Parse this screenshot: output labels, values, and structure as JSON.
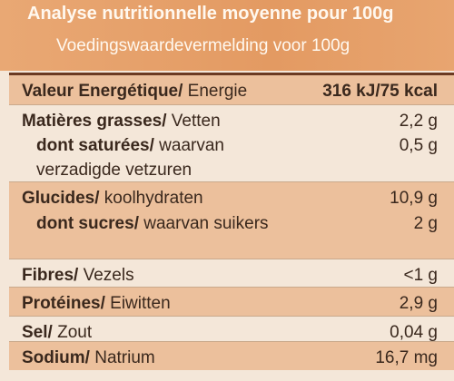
{
  "header": {
    "title": "Analyse nutritionnelle moyenne pour 100g",
    "subtitle": "Voedingswaardevermelding voor 100g"
  },
  "table": {
    "rows": [
      {
        "label_bold": "Valeur Energétique/",
        "label": " Energie",
        "value": "316 kJ/75 kcal"
      },
      {
        "label_bold": "Matières grasses/",
        "label": " Vetten",
        "value": "2,2 g"
      },
      {
        "label_bold": "dont saturées/",
        "label": " waarvan verzadigde vetzuren",
        "value": "0,5 g"
      },
      {
        "label_bold": "Glucides/",
        "label": " koolhydraten",
        "value": "10,9 g"
      },
      {
        "label_bold": "dont sucres/",
        "label": " waarvan suikers",
        "value": "2 g"
      },
      {
        "label_bold": "Fibres/",
        "label": " Vezels",
        "value": "<1 g"
      },
      {
        "label_bold": "Protéines/",
        "label": " Eiwitten",
        "value": "2,9 g"
      },
      {
        "label_bold": "Sel/",
        "label": " Zout",
        "value": "0,04 g"
      },
      {
        "label_bold": "Sodium/",
        "label": " Natrium",
        "value": "16,7 mg"
      }
    ]
  }
}
